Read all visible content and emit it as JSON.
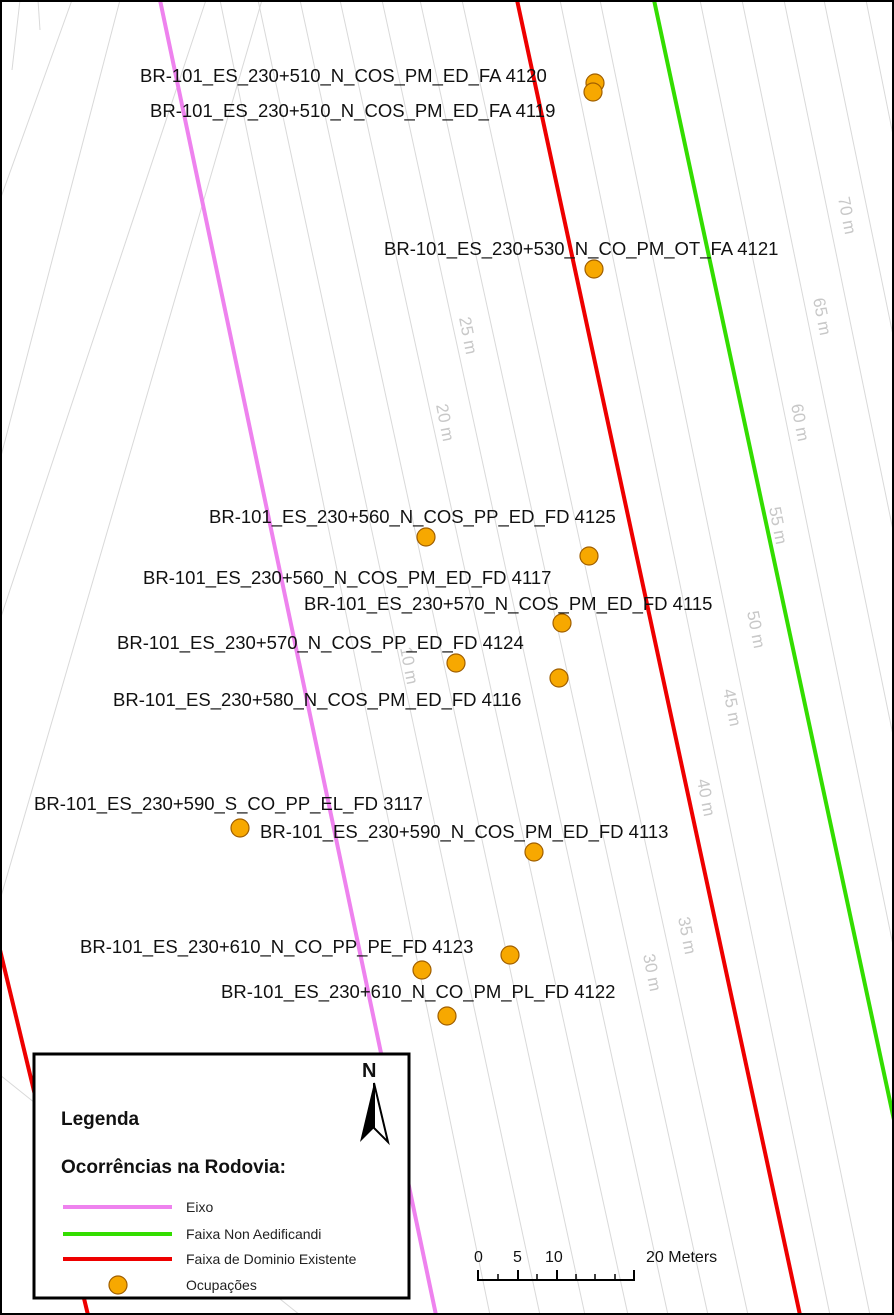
{
  "map": {
    "occurrences": [
      {
        "label": "BR-101_ES_230+510_N_COS_PM_ED_FA 4120"
      },
      {
        "label": "BR-101_ES_230+510_N_COS_PM_ED_FA 4119"
      },
      {
        "label": "BR-101_ES_230+530_N_CO_PM_OT_FA 4121"
      },
      {
        "label": "BR-101_ES_230+560_N_COS_PP_ED_FD 4125"
      },
      {
        "label": "BR-101_ES_230+560_N_COS_PM_ED_FD 4117"
      },
      {
        "label": "BR-101_ES_230+570_N_COS_PM_ED_FD 4115"
      },
      {
        "label": "BR-101_ES_230+570_N_COS_PP_ED_FD 4124"
      },
      {
        "label": "BR-101_ES_230+580_N_COS_PM_ED_FD 4116"
      },
      {
        "label": "BR-101_ES_230+590_S_CO_PP_EL_FD 3117"
      },
      {
        "label": "BR-101_ES_230+590_N_COS_PM_ED_FD 4113"
      },
      {
        "label": "BR-101_ES_230+610_N_CO_PP_PE_FD 4123"
      },
      {
        "label": "BR-101_ES_230+610_N_CO_PM_PL_FD 4122"
      }
    ],
    "distance_labels": [
      "70 m",
      "65 m",
      "60 m",
      "55 m",
      "50 m",
      "45 m",
      "40 m",
      "35 m",
      "30 m",
      "25 m",
      "20 m",
      "10 m"
    ],
    "colors": {
      "eixo": "#ee82ee",
      "faixa_non_aedificandi": "#33dd00",
      "faixa_dominio": "#ee0000",
      "ocupacoes": "#f7a800",
      "distance_lines": "#d9d9d9"
    }
  },
  "legend": {
    "title": "Legenda",
    "subtitle": "Ocorrências na Rodovia:",
    "items": [
      {
        "label": "Eixo",
        "symbol": "line",
        "color": "#ee82ee"
      },
      {
        "label": "Faixa Non Aedificandi",
        "symbol": "line",
        "color": "#33dd00"
      },
      {
        "label": "Faixa de Dominio Existente",
        "symbol": "line",
        "color": "#ee0000"
      },
      {
        "label": "Ocupações",
        "symbol": "circle",
        "color": "#f7a800"
      }
    ]
  },
  "north_arrow": {
    "label": "N",
    "icon": "north-arrow-icon"
  },
  "scale_bar": {
    "ticks": [
      "0",
      "5",
      "10",
      "20 Meters"
    ]
  }
}
